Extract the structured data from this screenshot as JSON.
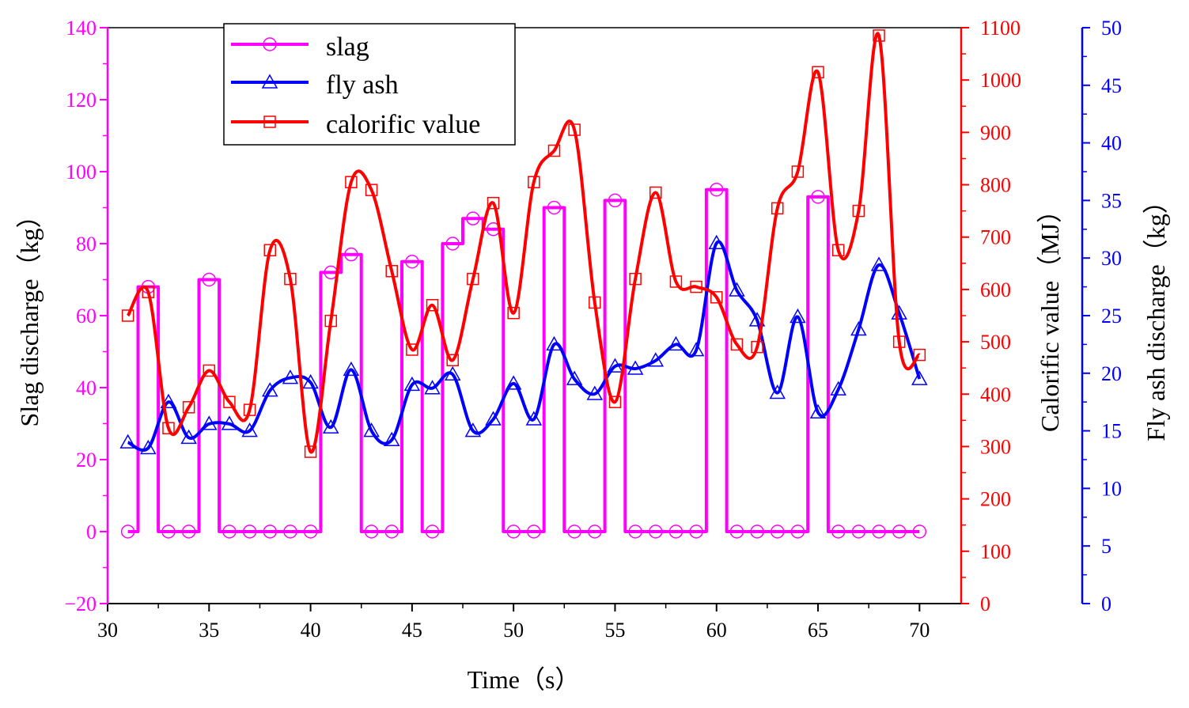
{
  "chart_data": {
    "type": "line",
    "title": "",
    "xlabel": "Time（s）",
    "x_ticks": [
      "30",
      "35",
      "40",
      "45",
      "50",
      "55",
      "60",
      "65",
      "70"
    ],
    "xlim": [
      30,
      71
    ],
    "axes": {
      "left": {
        "label": "Slag discharge（kg）",
        "ylim": [
          -20,
          140
        ],
        "ticks": [
          "−20",
          "0",
          "20",
          "40",
          "60",
          "80",
          "100",
          "120",
          "140"
        ],
        "color": "#ff00ff"
      },
      "right1": {
        "label": "Calorific value（MJ）",
        "ylim": [
          0,
          1100
        ],
        "ticks": [
          "0",
          "100",
          "200",
          "300",
          "400",
          "500",
          "600",
          "700",
          "800",
          "900",
          "1000",
          "1100"
        ],
        "color": "#ff0000"
      },
      "right2": {
        "label": "Fly ash discharge（kg）",
        "ylim": [
          0,
          50
        ],
        "ticks": [
          "0",
          "5",
          "10",
          "15",
          "20",
          "25",
          "30",
          "35",
          "40",
          "45",
          "50"
        ],
        "color": "#0000ff"
      }
    },
    "legend": {
      "position": "top-left",
      "entries": [
        "slag",
        "fly ash",
        "calorific value"
      ]
    },
    "series": [
      {
        "name": "slag",
        "axis": "left",
        "color": "#ff00ff",
        "marker": "circle",
        "step": true,
        "x": [
          31,
          32,
          33,
          34,
          35,
          36,
          37,
          38,
          39,
          40,
          41,
          42,
          43,
          44,
          45,
          46,
          47,
          48,
          49,
          50,
          51,
          52,
          53,
          54,
          55,
          56,
          57,
          58,
          59,
          60,
          61,
          62,
          63,
          64,
          65,
          66,
          67,
          68,
          69,
          70
        ],
        "values": [
          0,
          68,
          0,
          0,
          70,
          0,
          0,
          0,
          0,
          0,
          72,
          77,
          0,
          0,
          75,
          0,
          80,
          87,
          84,
          0,
          0,
          90,
          0,
          0,
          92,
          0,
          0,
          0,
          0,
          95,
          0,
          0,
          0,
          0,
          93,
          0,
          0,
          0,
          0,
          0
        ]
      },
      {
        "name": "fly ash",
        "axis": "right2",
        "color": "#0000ff",
        "marker": "triangle",
        "step": false,
        "x": [
          31,
          32,
          33,
          34,
          35,
          36,
          37,
          38,
          39,
          40,
          41,
          42,
          43,
          44,
          45,
          46,
          47,
          48,
          49,
          50,
          51,
          52,
          53,
          54,
          55,
          56,
          57,
          58,
          59,
          60,
          61,
          62,
          63,
          64,
          65,
          66,
          67,
          68,
          69,
          70
        ],
        "values": [
          14,
          13.5,
          17.5,
          14.4,
          15.6,
          15.6,
          15,
          18.5,
          19.6,
          19.2,
          15.3,
          20.3,
          15,
          14.2,
          19,
          18.7,
          19.9,
          15,
          16,
          19.1,
          16,
          22.5,
          19.5,
          18.2,
          20.6,
          20.4,
          21.1,
          22.5,
          22,
          31.3,
          27.2,
          24.6,
          18.3,
          24.9,
          16.6,
          18.6,
          23.8,
          29.4,
          25.2,
          19.5
        ]
      },
      {
        "name": "calorific value",
        "axis": "right1",
        "color": "#ff0000",
        "marker": "square",
        "step": false,
        "x": [
          31,
          32,
          33,
          34,
          35,
          36,
          37,
          38,
          39,
          40,
          41,
          42,
          43,
          44,
          45,
          46,
          47,
          48,
          49,
          50,
          51,
          52,
          53,
          54,
          55,
          56,
          57,
          58,
          59,
          60,
          61,
          62,
          63,
          64,
          65,
          66,
          67,
          68,
          69,
          70
        ],
        "values": [
          550,
          595,
          335,
          375,
          445,
          385,
          370,
          675,
          620,
          290,
          540,
          805,
          790,
          635,
          485,
          570,
          465,
          620,
          765,
          555,
          805,
          865,
          905,
          575,
          385,
          620,
          785,
          615,
          605,
          585,
          495,
          490,
          755,
          825,
          1015,
          675,
          750,
          1085,
          500,
          475
        ]
      }
    ]
  }
}
